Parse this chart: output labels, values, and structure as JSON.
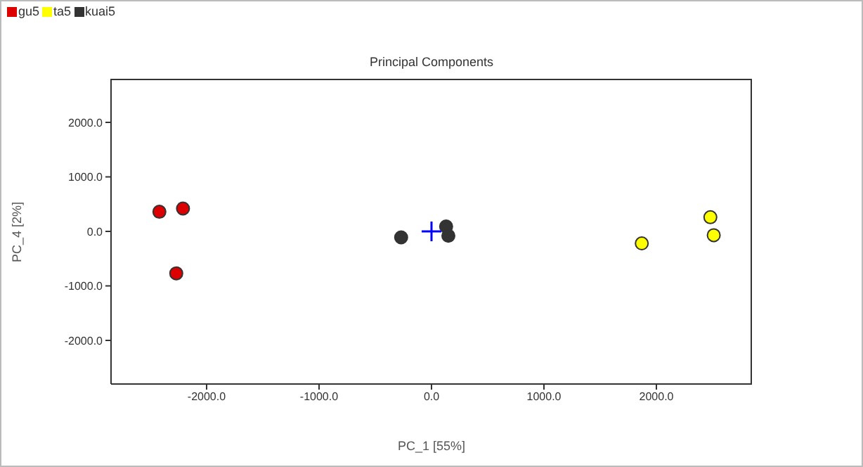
{
  "chart_data": {
    "type": "scatter",
    "title": "Principal Components",
    "xlabel": "PC_1 [55%]",
    "ylabel": "PC_4 [2%]",
    "xlim": [
      -2850,
      2850
    ],
    "ylim": [
      -2800,
      2800
    ],
    "xticks": [
      {
        "value": -2000,
        "label": "-2000.0"
      },
      {
        "value": -1000,
        "label": "-1000.0"
      },
      {
        "value": 0,
        "label": "0.0"
      },
      {
        "value": 1000,
        "label": "1000.0"
      },
      {
        "value": 2000,
        "label": "2000.0"
      }
    ],
    "yticks": [
      {
        "value": -2000,
        "label": "-2000.0"
      },
      {
        "value": -1000,
        "label": "-1000.0"
      },
      {
        "value": 0,
        "label": "0.0"
      },
      {
        "value": 1000,
        "label": "1000.0"
      },
      {
        "value": 2000,
        "label": "2000.0"
      }
    ],
    "legend": "top left",
    "marker": "circle",
    "grid": false,
    "series": [
      {
        "name": "gu5",
        "color": "#dd0000",
        "x": [
          -2420,
          -2210,
          -2270
        ],
        "values": [
          360,
          420,
          -770
        ]
      },
      {
        "name": "ta5",
        "color": "#ffff00",
        "x": [
          1870,
          2480,
          2510
        ],
        "values": [
          -220,
          260,
          -70
        ]
      },
      {
        "name": "kuai5",
        "color": "#333333",
        "x": [
          -270,
          130,
          150
        ],
        "values": [
          -110,
          90,
          -80
        ]
      },
      {
        "color": "#0000ff",
        "marker": "cross",
        "x": [
          0
        ],
        "values": [
          0
        ]
      }
    ]
  }
}
